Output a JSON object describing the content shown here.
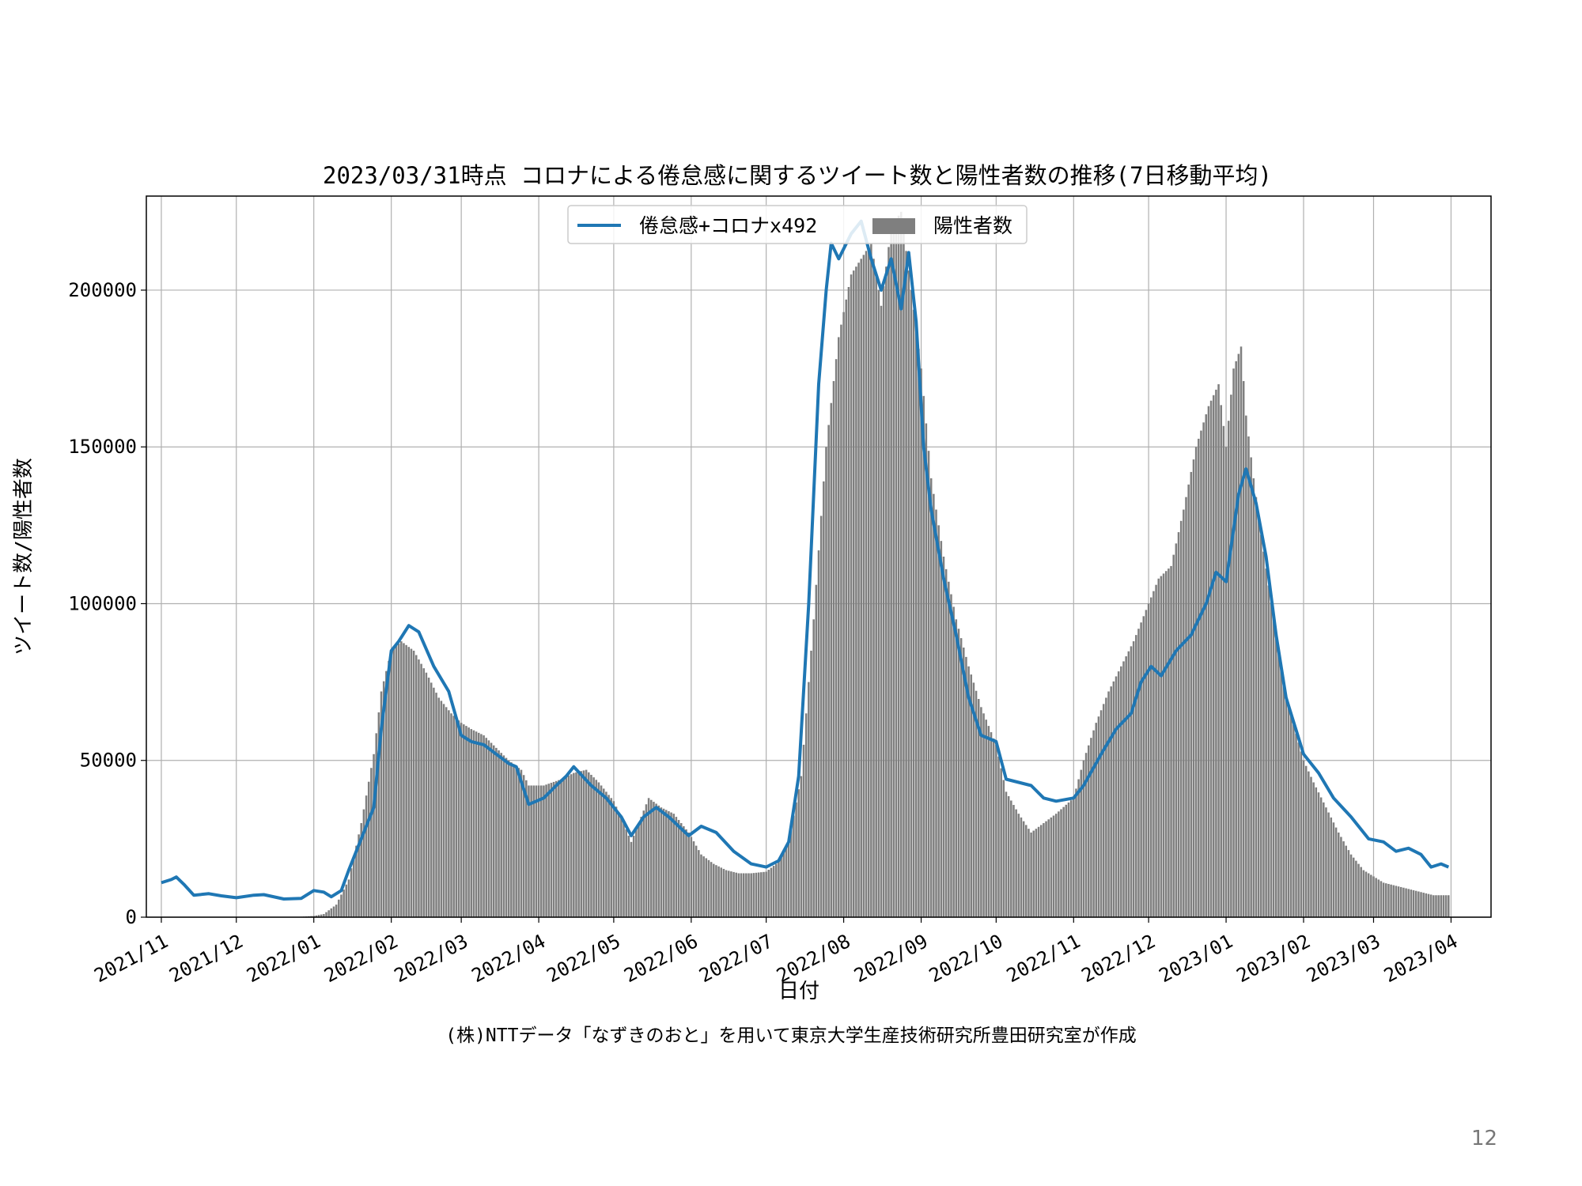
{
  "page_number": "12",
  "credit": "(株)NTTデータ「なずきのおと」を用いて東京大学生産技術研究所豊田研究室が作成",
  "chart_data": {
    "type": "bar+line",
    "title": "2023/03/31時点 コロナによる倦怠感に関するツイート数と陽性者数の推移(7日移動平均)",
    "xlabel": "日付",
    "ylabel": "ツイート数/陽性者数",
    "ylim": [
      0,
      230000
    ],
    "xlim": [
      "2021-10-26",
      "2023-04-17"
    ],
    "grid": true,
    "legend_position": "top-center",
    "yticks": [
      0,
      50000,
      100000,
      150000,
      200000
    ],
    "ytick_labels": [
      "0",
      "50000",
      "100000",
      "150000",
      "200000"
    ],
    "xticks": [
      "2021-11-01",
      "2021-12-01",
      "2022-01-01",
      "2022-02-01",
      "2022-03-01",
      "2022-04-01",
      "2022-05-01",
      "2022-06-01",
      "2022-07-01",
      "2022-08-01",
      "2022-09-01",
      "2022-10-01",
      "2022-11-01",
      "2022-12-01",
      "2023-01-01",
      "2023-02-01",
      "2023-03-01",
      "2023-04-01"
    ],
    "xtick_labels": [
      "2021/11",
      "2021/12",
      "2022/01",
      "2022/02",
      "2022/03",
      "2022/04",
      "2022/05",
      "2022/06",
      "2022/07",
      "2022/08",
      "2022/09",
      "2022/10",
      "2022/11",
      "2022/12",
      "2023/01",
      "2023/02",
      "2023/03",
      "2023/04"
    ],
    "series": [
      {
        "name": "倦怠感+コロナx492",
        "kind": "line",
        "color": "#1f77b4",
        "x": [
          "2021-11-01",
          "2021-11-05",
          "2021-11-07",
          "2021-11-10",
          "2021-11-14",
          "2021-11-20",
          "2021-11-25",
          "2021-12-01",
          "2021-12-08",
          "2021-12-12",
          "2021-12-20",
          "2021-12-27",
          "2022-01-01",
          "2022-01-05",
          "2022-01-08",
          "2022-01-12",
          "2022-01-15",
          "2022-01-20",
          "2022-01-25",
          "2022-01-28",
          "2022-02-01",
          "2022-02-04",
          "2022-02-08",
          "2022-02-12",
          "2022-02-18",
          "2022-02-24",
          "2022-03-01",
          "2022-03-05",
          "2022-03-10",
          "2022-03-15",
          "2022-03-20",
          "2022-03-23",
          "2022-03-28",
          "2022-04-03",
          "2022-04-08",
          "2022-04-12",
          "2022-04-15",
          "2022-04-22",
          "2022-04-28",
          "2022-05-04",
          "2022-05-08",
          "2022-05-13",
          "2022-05-18",
          "2022-05-23",
          "2022-05-27",
          "2022-05-31",
          "2022-06-05",
          "2022-06-11",
          "2022-06-18",
          "2022-06-25",
          "2022-07-01",
          "2022-07-06",
          "2022-07-10",
          "2022-07-14",
          "2022-07-18",
          "2022-07-22",
          "2022-07-25",
          "2022-07-27",
          "2022-07-30",
          "2022-08-04",
          "2022-08-08",
          "2022-08-12",
          "2022-08-16",
          "2022-08-20",
          "2022-08-24",
          "2022-08-27",
          "2022-08-30",
          "2022-09-02",
          "2022-09-05",
          "2022-09-10",
          "2022-09-15",
          "2022-09-20",
          "2022-09-25",
          "2022-10-01",
          "2022-10-05",
          "2022-10-10",
          "2022-10-15",
          "2022-10-20",
          "2022-10-25",
          "2022-11-01",
          "2022-11-05",
          "2022-11-12",
          "2022-11-18",
          "2022-11-24",
          "2022-11-28",
          "2022-12-02",
          "2022-12-06",
          "2022-12-12",
          "2022-12-18",
          "2022-12-24",
          "2022-12-28",
          "2023-01-01",
          "2023-01-06",
          "2023-01-09",
          "2023-01-13",
          "2023-01-17",
          "2023-01-21",
          "2023-01-25",
          "2023-02-01",
          "2023-02-07",
          "2023-02-13",
          "2023-02-20",
          "2023-02-27",
          "2023-03-05",
          "2023-03-10",
          "2023-03-15",
          "2023-03-20",
          "2023-03-24",
          "2023-03-28",
          "2023-03-31"
        ],
        "values": [
          11000,
          12000,
          12800,
          10500,
          7000,
          7500,
          6800,
          6200,
          7000,
          7200,
          5800,
          6000,
          8500,
          8000,
          6500,
          8500,
          15000,
          25000,
          35000,
          60000,
          85000,
          88000,
          93000,
          91000,
          80000,
          72000,
          58000,
          56000,
          55000,
          52000,
          49000,
          48000,
          36000,
          38000,
          42000,
          45000,
          48000,
          42000,
          38000,
          32000,
          26000,
          32000,
          35000,
          32000,
          29000,
          26000,
          29000,
          27000,
          21000,
          17000,
          16000,
          18000,
          24000,
          45000,
          100000,
          170000,
          200000,
          215000,
          210000,
          218000,
          222000,
          210000,
          200000,
          210000,
          194000,
          212000,
          190000,
          150000,
          130000,
          108000,
          90000,
          70000,
          58000,
          56000,
          44000,
          43000,
          42000,
          38000,
          37000,
          38000,
          42000,
          52000,
          60000,
          65000,
          75000,
          80000,
          77000,
          85000,
          90000,
          100000,
          110000,
          107000,
          135000,
          143000,
          132000,
          115000,
          90000,
          70000,
          52000,
          46000,
          38000,
          32000,
          25000,
          24000,
          21000,
          22000,
          20000,
          16000,
          17000,
          16000
        ]
      },
      {
        "name": "陽性者数",
        "kind": "bar",
        "color": "#7f7f7f",
        "x": [
          "2021-11-01",
          "2021-12-01",
          "2021-12-26",
          "2022-01-01",
          "2022-01-05",
          "2022-01-10",
          "2022-01-15",
          "2022-01-20",
          "2022-01-25",
          "2022-01-28",
          "2022-02-01",
          "2022-02-05",
          "2022-02-10",
          "2022-02-15",
          "2022-02-20",
          "2022-02-25",
          "2022-03-01",
          "2022-03-05",
          "2022-03-10",
          "2022-03-15",
          "2022-03-20",
          "2022-03-25",
          "2022-03-28",
          "2022-04-03",
          "2022-04-10",
          "2022-04-15",
          "2022-04-20",
          "2022-04-25",
          "2022-05-01",
          "2022-05-05",
          "2022-05-08",
          "2022-05-12",
          "2022-05-15",
          "2022-05-20",
          "2022-05-25",
          "2022-05-31",
          "2022-06-05",
          "2022-06-10",
          "2022-06-15",
          "2022-06-20",
          "2022-06-25",
          "2022-07-01",
          "2022-07-05",
          "2022-07-10",
          "2022-07-15",
          "2022-07-20",
          "2022-07-25",
          "2022-07-30",
          "2022-08-04",
          "2022-08-08",
          "2022-08-12",
          "2022-08-16",
          "2022-08-20",
          "2022-08-24",
          "2022-08-28",
          "2022-09-01",
          "2022-09-05",
          "2022-09-10",
          "2022-09-15",
          "2022-09-20",
          "2022-09-25",
          "2022-10-01",
          "2022-10-05",
          "2022-10-10",
          "2022-10-15",
          "2022-10-20",
          "2022-10-25",
          "2022-11-01",
          "2022-11-05",
          "2022-11-10",
          "2022-11-15",
          "2022-11-20",
          "2022-11-25",
          "2022-12-01",
          "2022-12-05",
          "2022-12-10",
          "2022-12-15",
          "2022-12-20",
          "2022-12-25",
          "2022-12-29",
          "2023-01-01",
          "2023-01-04",
          "2023-01-07",
          "2023-01-09",
          "2023-01-12",
          "2023-01-15",
          "2023-01-20",
          "2023-01-25",
          "2023-02-01",
          "2023-02-05",
          "2023-02-10",
          "2023-02-15",
          "2023-02-20",
          "2023-02-25",
          "2023-03-01",
          "2023-03-05",
          "2023-03-10",
          "2023-03-15",
          "2023-03-20",
          "2023-03-25",
          "2023-03-31"
        ],
        "values": [
          100,
          100,
          100,
          400,
          1000,
          4000,
          12000,
          30000,
          52000,
          72000,
          85000,
          88000,
          85000,
          78000,
          70000,
          65000,
          62000,
          60000,
          58000,
          54000,
          50000,
          47000,
          42000,
          42000,
          44000,
          46000,
          47000,
          43000,
          37000,
          30000,
          24000,
          32000,
          38000,
          35000,
          33000,
          27000,
          20000,
          17000,
          15000,
          14000,
          14000,
          14500,
          17000,
          24000,
          45000,
          95000,
          150000,
          185000,
          205000,
          210000,
          215000,
          195000,
          220000,
          225000,
          200000,
          175000,
          140000,
          115000,
          95000,
          80000,
          67000,
          55000,
          40000,
          33000,
          27000,
          30000,
          33000,
          38000,
          50000,
          62000,
          72000,
          80000,
          88000,
          100000,
          108000,
          112000,
          130000,
          150000,
          163000,
          170000,
          150000,
          175000,
          182000,
          160000,
          140000,
          122000,
          95000,
          70000,
          50000,
          43000,
          35000,
          27000,
          20000,
          15000,
          13000,
          11000,
          10000,
          9000,
          8000,
          7000,
          7000
        ]
      }
    ]
  }
}
